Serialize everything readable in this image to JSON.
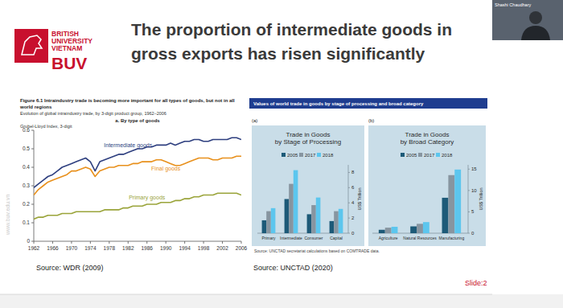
{
  "slide": {
    "logo_text": [
      "BRITISH",
      "UNIVERSITY",
      "VIETNAM"
    ],
    "logo_mark": "BUV",
    "title": [
      "The proportion of intermediate goods in",
      "gross exports has risen significantly"
    ],
    "watermark": "www.buv.edu.vn",
    "left_source": "Source: WDR (2009)",
    "right_source": "Source: UNCTAD (2020)",
    "right_header": "Values of world trade in goods by stage of processing and broad category",
    "right_note": "Source: UNCTAD secretariat calculations based on COMTRADE data.",
    "slide_number": "Slide:2",
    "presenter": "Shashi Chaudhary"
  },
  "chart_data": [
    {
      "type": "line",
      "title": [
        "Figure 6.1  Intraindustry trade is becoming more important for all types of goods, but not in all",
        "world regions"
      ],
      "subtitle": "Evolution of global intraindustry trade, by 3-digit product group, 1962–2006",
      "annotations": [
        "a. By type of goods"
      ],
      "y_label": "Grubel-Lloyd Index, 3-digit",
      "x": [
        1962,
        1963,
        1964,
        1965,
        1966,
        1967,
        1968,
        1969,
        1970,
        1971,
        1972,
        1973,
        1974,
        1975,
        1976,
        1977,
        1978,
        1979,
        1980,
        1981,
        1982,
        1983,
        1984,
        1985,
        1986,
        1987,
        1988,
        1989,
        1990,
        1991,
        1992,
        1993,
        1994,
        1995,
        1996,
        1997,
        1998,
        1999,
        2000,
        2001,
        2002,
        2003,
        2004,
        2005,
        2006
      ],
      "series": [
        {
          "name": "Intermediate goods",
          "color": "#2e3f7f",
          "values": [
            0.29,
            0.31,
            0.33,
            0.35,
            0.36,
            0.38,
            0.4,
            0.41,
            0.42,
            0.43,
            0.44,
            0.45,
            0.43,
            0.38,
            0.43,
            0.44,
            0.45,
            0.46,
            0.47,
            0.47,
            0.48,
            0.49,
            0.5,
            0.5,
            0.51,
            0.51,
            0.52,
            0.52,
            0.52,
            0.53,
            0.52,
            0.53,
            0.54,
            0.54,
            0.55,
            0.55,
            0.54,
            0.54,
            0.55,
            0.55,
            0.55,
            0.55,
            0.56,
            0.56,
            0.55
          ]
        },
        {
          "name": "Final goods",
          "color": "#e8901c",
          "values": [
            0.25,
            0.28,
            0.3,
            0.32,
            0.33,
            0.34,
            0.35,
            0.36,
            0.38,
            0.38,
            0.39,
            0.4,
            0.39,
            0.35,
            0.38,
            0.39,
            0.4,
            0.4,
            0.41,
            0.41,
            0.41,
            0.42,
            0.42,
            0.43,
            0.43,
            0.43,
            0.44,
            0.44,
            0.43,
            0.42,
            0.41,
            0.41,
            0.42,
            0.43,
            0.44,
            0.45,
            0.45,
            0.45,
            0.44,
            0.44,
            0.45,
            0.45,
            0.45,
            0.46,
            0.46
          ]
        },
        {
          "name": "Primary goods",
          "color": "#9aa43a",
          "values": [
            0.12,
            0.13,
            0.13,
            0.14,
            0.14,
            0.14,
            0.15,
            0.15,
            0.15,
            0.16,
            0.16,
            0.16,
            0.16,
            0.16,
            0.16,
            0.17,
            0.17,
            0.17,
            0.17,
            0.18,
            0.18,
            0.19,
            0.19,
            0.19,
            0.2,
            0.2,
            0.2,
            0.21,
            0.21,
            0.21,
            0.22,
            0.22,
            0.23,
            0.23,
            0.24,
            0.24,
            0.25,
            0.25,
            0.25,
            0.26,
            0.26,
            0.26,
            0.26,
            0.26,
            0.25
          ]
        }
      ],
      "xlim": [
        1962,
        2006
      ],
      "xticks": [
        1962,
        1966,
        1970,
        1974,
        1978,
        1982,
        1986,
        1990,
        1994,
        1998,
        2002,
        2006
      ],
      "ylim": [
        0,
        0.6
      ],
      "yticks": [
        0,
        0.1,
        0.2,
        0.3,
        0.4,
        0.5,
        0.6
      ],
      "grid": false
    },
    {
      "type": "bar",
      "panel": "(a)",
      "title": [
        "Trade in Goods",
        "by Stage of Processing"
      ],
      "y_label": "US$ Trillion",
      "categories": [
        "Primary",
        "Intermediate",
        "Consumer",
        "Capital"
      ],
      "series": [
        {
          "name": "2005",
          "color": "#1d5a78",
          "values": [
            1.7,
            4.5,
            2.5,
            1.6
          ]
        },
        {
          "name": "2017",
          "color": "#8795a0",
          "values": [
            2.9,
            6.5,
            3.7,
            2.9
          ]
        },
        {
          "name": "2018",
          "color": "#5cc6ee",
          "values": [
            3.3,
            8.3,
            4.7,
            3.2
          ]
        }
      ],
      "ylim": [
        0,
        9
      ],
      "yticks": [
        0,
        2,
        4,
        6,
        8
      ],
      "legend": "top",
      "grid": false
    },
    {
      "type": "bar",
      "panel": "(b)",
      "title": [
        "Trade in Goods",
        "by Broad Category"
      ],
      "y_label": "US$ Trillion",
      "categories": [
        "Agriculture",
        "Natural Resources",
        "Manufacturing"
      ],
      "series": [
        {
          "name": "2005",
          "color": "#1d5a78",
          "values": [
            0.8,
            1.6,
            8.3
          ]
        },
        {
          "name": "2017",
          "color": "#8795a0",
          "values": [
            1.3,
            2.2,
            13.6
          ]
        },
        {
          "name": "2018",
          "color": "#5cc6ee",
          "values": [
            1.5,
            2.6,
            14.9
          ]
        }
      ],
      "ylim": [
        0,
        16
      ],
      "yticks": [
        0,
        5,
        10,
        15
      ],
      "legend": "top",
      "grid": false
    }
  ]
}
